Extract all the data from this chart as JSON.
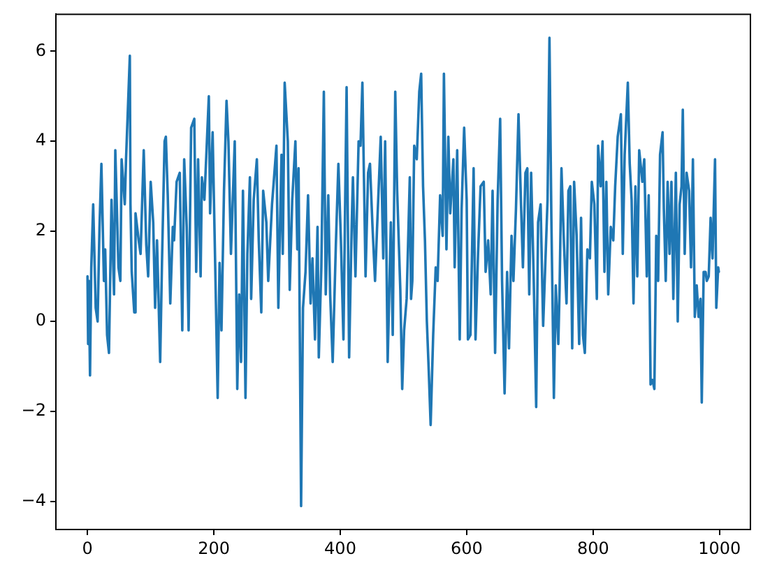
{
  "chart_data": {
    "type": "line",
    "x": [
      0,
      1,
      2,
      4,
      6,
      9,
      13,
      16,
      19,
      22,
      26,
      28,
      31,
      34,
      38,
      42,
      44,
      49,
      52,
      54,
      59,
      61,
      67,
      68,
      70,
      74,
      76,
      81,
      84,
      89,
      93,
      96,
      100,
      104,
      107,
      110,
      115,
      118,
      122,
      124,
      127,
      131,
      135,
      137,
      141,
      146,
      150,
      153,
      157,
      160,
      164,
      169,
      172,
      175,
      179,
      181,
      185,
      192,
      194,
      198,
      202,
      206,
      209,
      212,
      216,
      220,
      223,
      227,
      233,
      237,
      240,
      243,
      246,
      250,
      253,
      257,
      259,
      263,
      268,
      271,
      275,
      278,
      283,
      286,
      292,
      299,
      302,
      307,
      309,
      312,
      317,
      320,
      324,
      329,
      332,
      334,
      338,
      341,
      345,
      349,
      353,
      356,
      360,
      364,
      366,
      370,
      374,
      377,
      381,
      384,
      388,
      393,
      397,
      401,
      405,
      410,
      414,
      418,
      420,
      424,
      429,
      432,
      435,
      440,
      444,
      447,
      451,
      455,
      458,
      464,
      468,
      471,
      475,
      480,
      483,
      487,
      490,
      495,
      498,
      501,
      505,
      510,
      512,
      514,
      517,
      521,
      525,
      528,
      531,
      534,
      537,
      540,
      543,
      547,
      551,
      554,
      558,
      562,
      564,
      568,
      571,
      574,
      579,
      581,
      585,
      589,
      592,
      596,
      600,
      602,
      606,
      611,
      614,
      618,
      622,
      627,
      630,
      634,
      638,
      641,
      645,
      649,
      653,
      656,
      660,
      664,
      667,
      671,
      674,
      678,
      682,
      686,
      689,
      693,
      696,
      699,
      702,
      706,
      710,
      713,
      717,
      721,
      724,
      728,
      731,
      734,
      738,
      741,
      745,
      747,
      750,
      754,
      758,
      761,
      764,
      767,
      770,
      774,
      778,
      781,
      784,
      787,
      791,
      795,
      798,
      802,
      806,
      808,
      812,
      815,
      818,
      821,
      824,
      828,
      832,
      835,
      839,
      844,
      847,
      850,
      855,
      858,
      861,
      864,
      867,
      870,
      873,
      878,
      881,
      885,
      888,
      891,
      894,
      897,
      900,
      903,
      906,
      910,
      912,
      915,
      918,
      921,
      924,
      927,
      931,
      934,
      937,
      940,
      942,
      945,
      948,
      952,
      955,
      958,
      961,
      964,
      967,
      970,
      972,
      975,
      978,
      980,
      983,
      986,
      989,
      993,
      995,
      998,
      999
    ],
    "series": [
      {
        "color": "#1f77b4",
        "values": [
          1.0,
          -0.5,
          0.9,
          -1.2,
          1.2,
          2.6,
          0.3,
          0.0,
          2.1,
          3.5,
          0.9,
          1.6,
          -0.3,
          -0.7,
          2.7,
          0.6,
          3.8,
          1.2,
          0.9,
          3.6,
          2.6,
          3.6,
          5.9,
          2.6,
          1.1,
          0.2,
          2.4,
          1.8,
          1.5,
          3.8,
          1.7,
          1.0,
          3.1,
          2.2,
          0.3,
          1.8,
          -0.9,
          1.4,
          4.0,
          4.1,
          2.8,
          0.4,
          2.1,
          1.8,
          3.1,
          3.3,
          -0.2,
          3.6,
          2.1,
          -0.2,
          4.3,
          4.5,
          1.1,
          3.6,
          1.0,
          3.2,
          2.7,
          5.0,
          2.4,
          4.2,
          1.3,
          -1.7,
          1.3,
          -0.2,
          2.9,
          4.9,
          4.0,
          1.5,
          4.0,
          -1.5,
          0.6,
          -0.9,
          2.9,
          -1.7,
          1.5,
          3.2,
          0.5,
          2.7,
          3.6,
          1.8,
          0.2,
          2.9,
          2.2,
          0.9,
          2.6,
          3.9,
          0.3,
          3.7,
          1.5,
          5.3,
          4.0,
          0.7,
          2.7,
          4.0,
          1.6,
          3.4,
          -4.1,
          0.3,
          1.1,
          2.8,
          0.4,
          1.4,
          -0.4,
          2.1,
          -0.8,
          1.2,
          5.1,
          0.6,
          2.8,
          0.6,
          -0.9,
          1.7,
          3.5,
          1.8,
          -0.4,
          5.2,
          -0.8,
          2.1,
          3.2,
          1.0,
          4.0,
          3.9,
          5.3,
          1.0,
          3.3,
          3.5,
          2.1,
          0.9,
          2.0,
          4.1,
          1.4,
          4.0,
          -0.9,
          2.2,
          -0.3,
          5.1,
          2.9,
          0.7,
          -1.5,
          -0.2,
          0.5,
          3.2,
          0.5,
          0.9,
          3.9,
          3.6,
          5.1,
          5.5,
          3.0,
          1.8,
          0.0,
          -1.1,
          -2.3,
          -0.3,
          1.2,
          0.9,
          2.8,
          1.9,
          5.5,
          1.6,
          4.1,
          2.4,
          3.6,
          1.2,
          3.8,
          -0.4,
          2.5,
          4.3,
          2.7,
          -0.4,
          -0.3,
          3.4,
          -0.4,
          1.5,
          3.0,
          3.1,
          1.1,
          1.8,
          0.6,
          2.9,
          -0.7,
          2.7,
          4.5,
          0.9,
          -1.6,
          1.1,
          -0.6,
          1.9,
          0.9,
          2.5,
          4.6,
          2.6,
          1.2,
          3.3,
          3.4,
          0.6,
          3.3,
          1.0,
          -1.9,
          2.2,
          2.6,
          -0.1,
          1.1,
          2.7,
          6.3,
          2.3,
          -1.7,
          0.8,
          -0.5,
          0.7,
          3.4,
          1.7,
          0.4,
          2.9,
          3.0,
          -0.6,
          3.1,
          1.9,
          -0.5,
          2.3,
          -0.3,
          -0.7,
          1.6,
          1.4,
          3.1,
          2.6,
          0.5,
          3.9,
          3.0,
          4.0,
          1.1,
          3.1,
          0.6,
          2.1,
          1.8,
          3.0,
          4.1,
          4.6,
          1.5,
          3.7,
          5.3,
          3.5,
          2.7,
          0.4,
          3.0,
          1.0,
          3.8,
          3.1,
          3.6,
          1.0,
          2.8,
          -1.4,
          -1.3,
          -1.5,
          1.9,
          0.9,
          3.7,
          4.2,
          2.5,
          0.9,
          3.1,
          1.5,
          3.1,
          0.5,
          3.3,
          0.0,
          2.6,
          3.0,
          4.7,
          1.5,
          3.3,
          2.9,
          1.2,
          3.6,
          0.1,
          0.8,
          0.1,
          0.5,
          -1.8,
          1.1,
          1.1,
          0.9,
          1.0,
          2.3,
          1.4,
          3.6,
          0.3,
          1.2,
          1.1
        ]
      }
    ],
    "xlim": [
      -50,
      1049
    ],
    "ylim": [
      -4.62,
      6.82
    ],
    "xticks": [
      0,
      200,
      400,
      600,
      800,
      1000
    ],
    "yticks": [
      -4,
      -2,
      0,
      2,
      4,
      6
    ],
    "marker": "none",
    "line_style": "solid"
  }
}
